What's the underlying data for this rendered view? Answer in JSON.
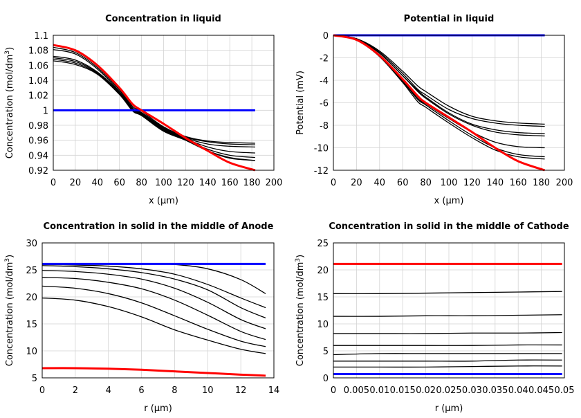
{
  "chart_data": [
    {
      "type": "line",
      "title": "Concentration in liquid",
      "xlabel": "x (µm)",
      "ylabel": "Concentration (mol/dm",
      "ylabel_sup": "3",
      "ylabel_end": ")",
      "xlim": [
        0,
        200
      ],
      "ylim": [
        0.92,
        1.1
      ],
      "xticks": [
        "0",
        "20",
        "40",
        "60",
        "80",
        "100",
        "120",
        "140",
        "160",
        "180",
        "200"
      ],
      "yticks": [
        "0.92",
        "0.94",
        "0.96",
        "0.98",
        "1",
        "1.02",
        "1.04",
        "1.06",
        "1.08",
        "1.1"
      ],
      "grid": true,
      "x": [
        0,
        20,
        40,
        60,
        72,
        80,
        100,
        120,
        140,
        160,
        183
      ],
      "series": [
        {
          "color": "#000000",
          "values": [
            1.087,
            1.079,
            1.059,
            1.029,
            1.005,
            0.999,
            0.978,
            0.965,
            0.959,
            0.957,
            0.956
          ]
        },
        {
          "color": "#000000",
          "values": [
            1.084,
            1.077,
            1.057,
            1.027,
            1.003,
            0.997,
            0.977,
            0.964,
            0.958,
            0.955,
            0.954
          ]
        },
        {
          "color": "#000000",
          "values": [
            1.081,
            1.075,
            1.055,
            1.025,
            1.002,
            0.996,
            0.976,
            0.963,
            0.955,
            0.952,
            0.951
          ]
        },
        {
          "color": "#000000",
          "values": [
            1.072,
            1.067,
            1.051,
            1.024,
            1.001,
            0.995,
            0.975,
            0.962,
            0.951,
            0.945,
            0.943
          ]
        },
        {
          "color": "#000000",
          "values": [
            1.07,
            1.065,
            1.05,
            1.023,
            1.0,
            0.994,
            0.974,
            0.961,
            0.948,
            0.94,
            0.937
          ]
        },
        {
          "color": "#000000",
          "values": [
            1.068,
            1.063,
            1.049,
            1.022,
            0.999,
            0.993,
            0.973,
            0.96,
            0.946,
            0.937,
            0.933
          ]
        },
        {
          "color": "#000000",
          "values": [
            1.066,
            1.061,
            1.048,
            1.021,
            0.999,
            0.993,
            0.972,
            0.96,
            0.946,
            0.936,
            0.933
          ]
        },
        {
          "color": "#0000ff",
          "values": [
            1,
            1,
            1,
            1,
            1,
            1,
            1,
            1,
            1,
            1,
            1
          ]
        },
        {
          "color": "#ff0000",
          "values": [
            1.087,
            1.08,
            1.06,
            1.03,
            1.008,
            1.0,
            0.982,
            0.963,
            0.946,
            0.93,
            0.92
          ]
        }
      ]
    },
    {
      "type": "line",
      "title": "Potential in liquid",
      "xlabel": "x (µm)",
      "ylabel": "Potential (mV)",
      "xlim": [
        0,
        200
      ],
      "ylim": [
        -12,
        0
      ],
      "xticks": [
        "0",
        "20",
        "40",
        "60",
        "80",
        "100",
        "120",
        "140",
        "160",
        "180",
        "200"
      ],
      "yticks": [
        "-12",
        "-10",
        "-8",
        "-6",
        "-4",
        "-2",
        "0"
      ],
      "grid": true,
      "x": [
        0,
        20,
        40,
        60,
        73,
        80,
        100,
        120,
        140,
        160,
        183
      ],
      "series": [
        {
          "color": "#000000",
          "values": [
            0,
            -0.3,
            -1.4,
            -3.2,
            -4.5,
            -5.0,
            -6.3,
            -7.2,
            -7.6,
            -7.8,
            -7.9
          ]
        },
        {
          "color": "#000000",
          "values": [
            0,
            -0.3,
            -1.5,
            -3.4,
            -4.8,
            -5.3,
            -6.6,
            -7.4,
            -7.8,
            -8.0,
            -8.1
          ]
        },
        {
          "color": "#000000",
          "values": [
            0,
            -0.35,
            -1.6,
            -3.6,
            -4.9,
            -5.5,
            -6.9,
            -7.9,
            -8.4,
            -8.65,
            -8.75
          ]
        },
        {
          "color": "#000000",
          "values": [
            0,
            -0.35,
            -1.6,
            -3.6,
            -5.0,
            -5.6,
            -7.0,
            -8.0,
            -8.6,
            -8.85,
            -8.95
          ]
        },
        {
          "color": "#000000",
          "values": [
            0,
            -0.4,
            -1.8,
            -4.0,
            -5.6,
            -6.1,
            -7.4,
            -8.6,
            -9.5,
            -9.9,
            -10.0
          ]
        },
        {
          "color": "#000000",
          "values": [
            0,
            -0.4,
            -1.8,
            -4.1,
            -5.7,
            -6.2,
            -7.6,
            -8.9,
            -10.0,
            -10.6,
            -10.8
          ]
        },
        {
          "color": "#000000",
          "values": [
            0,
            -0.45,
            -1.9,
            -4.2,
            -5.9,
            -6.4,
            -7.8,
            -9.1,
            -10.2,
            -10.8,
            -11.0
          ]
        },
        {
          "color": "#0000ff",
          "values": [
            0,
            0,
            0,
            0,
            0,
            0,
            0,
            0,
            0,
            0,
            0
          ]
        },
        {
          "color": "#ff0000",
          "values": [
            0,
            -0.4,
            -1.8,
            -3.9,
            -5.4,
            -6.0,
            -7.3,
            -8.6,
            -10.0,
            -11.2,
            -12.0
          ]
        }
      ]
    },
    {
      "type": "line",
      "title": "Concentration in solid in the middle of Anode",
      "xlabel": "r (µm)",
      "ylabel": "Concentration (mol/dm",
      "ylabel_sup": "3",
      "ylabel_end": ")",
      "xlim": [
        0,
        14
      ],
      "ylim": [
        5,
        30
      ],
      "xticks": [
        "0",
        "2",
        "4",
        "6",
        "8",
        "10",
        "12",
        "14"
      ],
      "yticks": [
        "5",
        "10",
        "15",
        "20",
        "25",
        "30"
      ],
      "grid": true,
      "x": [
        0,
        2,
        4,
        6,
        8,
        10,
        12,
        13.5
      ],
      "series": [
        {
          "color": "#000000",
          "values": [
            26.1,
            26.1,
            26.1,
            26.1,
            26.0,
            25.2,
            23.2,
            20.6
          ]
        },
        {
          "color": "#000000",
          "values": [
            26.0,
            25.9,
            25.7,
            25.2,
            24.2,
            22.3,
            19.8,
            18.0
          ]
        },
        {
          "color": "#000000",
          "values": [
            25.8,
            25.6,
            25.2,
            24.5,
            23.3,
            21.3,
            18.0,
            16.1
          ]
        },
        {
          "color": "#000000",
          "values": [
            24.9,
            24.7,
            24.2,
            23.3,
            21.6,
            19.0,
            15.8,
            14.1
          ]
        },
        {
          "color": "#000000",
          "values": [
            23.6,
            23.4,
            22.7,
            21.5,
            19.4,
            16.6,
            13.6,
            12.1
          ]
        },
        {
          "color": "#000000",
          "values": [
            22.0,
            21.6,
            20.6,
            18.9,
            16.5,
            14.0,
            11.8,
            10.8
          ]
        },
        {
          "color": "#000000",
          "values": [
            19.8,
            19.4,
            18.2,
            16.3,
            13.9,
            12.0,
            10.3,
            9.5
          ]
        },
        {
          "color": "#0000ff",
          "values": [
            26.1,
            26.1,
            26.1,
            26.1,
            26.1,
            26.1,
            26.1,
            26.1
          ]
        },
        {
          "color": "#ff0000",
          "values": [
            6.8,
            6.8,
            6.7,
            6.5,
            6.2,
            5.9,
            5.6,
            5.4
          ]
        }
      ]
    },
    {
      "type": "line",
      "title": "Concentration in solid in the middle of Cathode",
      "xlabel": "r (µm)",
      "ylabel": "Concentration (mol/dm",
      "ylabel_sup": "3",
      "ylabel_end": ")",
      "xlim": [
        0,
        0.05
      ],
      "ylim": [
        0,
        25
      ],
      "xticks": [
        "0",
        "0.005",
        "0.01",
        "0.015",
        "0.02",
        "0.025",
        "0.03",
        "0.035",
        "0.04",
        "0.045",
        "0.05"
      ],
      "yticks": [
        "0",
        "5",
        "10",
        "15",
        "20",
        "25"
      ],
      "grid": true,
      "x": [
        0,
        0.01,
        0.02,
        0.03,
        0.04,
        0.0495
      ],
      "series": [
        {
          "color": "#000000",
          "values": [
            15.6,
            15.6,
            15.7,
            15.8,
            15.9,
            16.0
          ]
        },
        {
          "color": "#000000",
          "values": [
            11.4,
            11.4,
            11.5,
            11.5,
            11.6,
            11.7
          ]
        },
        {
          "color": "#000000",
          "values": [
            8.2,
            8.2,
            8.2,
            8.3,
            8.3,
            8.4
          ]
        },
        {
          "color": "#000000",
          "values": [
            6.0,
            6.0,
            6.0,
            6.0,
            6.1,
            6.1
          ]
        },
        {
          "color": "#000000",
          "values": [
            4.3,
            4.5,
            4.5,
            4.5,
            4.5,
            4.5
          ]
        },
        {
          "color": "#000000",
          "values": [
            3.1,
            3.1,
            3.1,
            3.1,
            3.3,
            3.3
          ]
        },
        {
          "color": "#000000",
          "values": [
            2.0,
            2.0,
            2.0,
            2.1,
            2.2,
            2.2
          ]
        },
        {
          "color": "#0000ff",
          "values": [
            0.7,
            0.7,
            0.7,
            0.7,
            0.7,
            0.7
          ]
        },
        {
          "color": "#ff0000",
          "values": [
            21.1,
            21.1,
            21.1,
            21.1,
            21.1,
            21.1
          ]
        }
      ]
    }
  ]
}
